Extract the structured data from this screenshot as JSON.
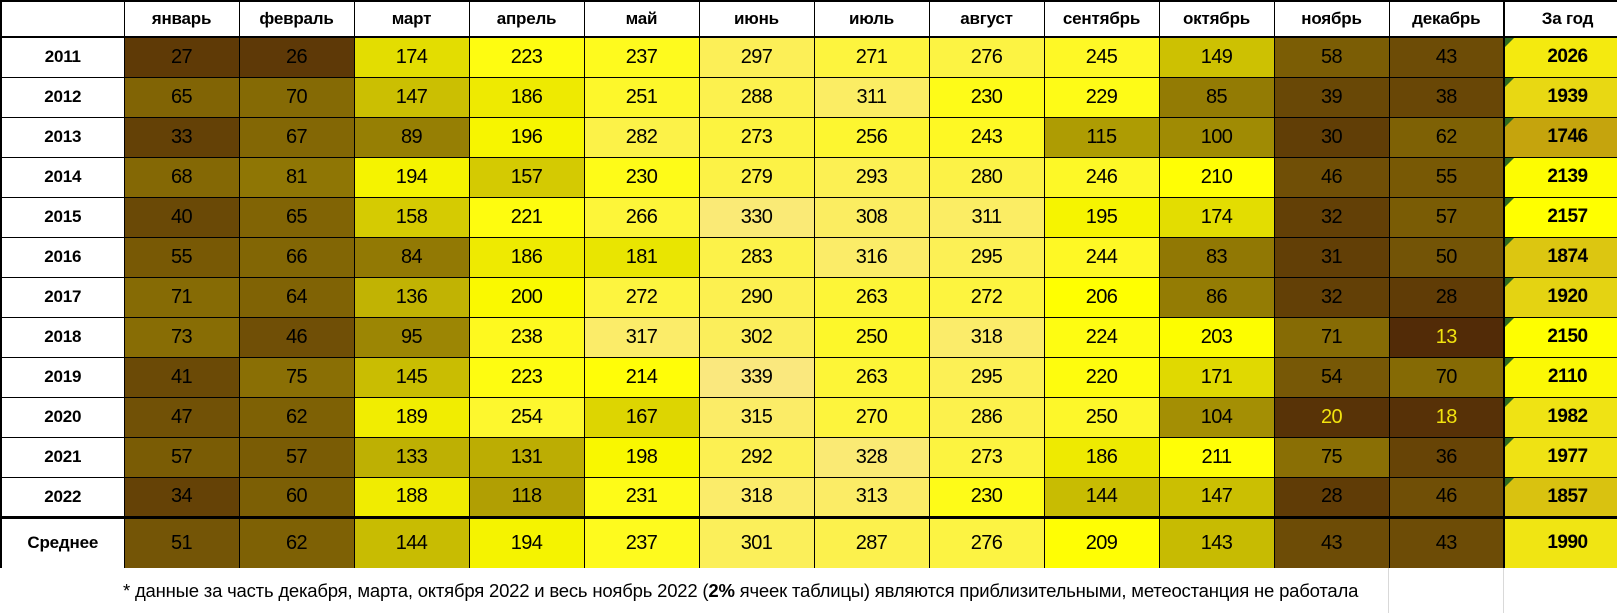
{
  "chart_data": {
    "type": "heatmap",
    "corner_label": "",
    "columns": [
      "январь",
      "февраль",
      "март",
      "апрель",
      "май",
      "июнь",
      "июль",
      "август",
      "сентябрь",
      "октябрь",
      "ноябрь",
      "декабрь"
    ],
    "total_column": "За год",
    "rows": [
      {
        "label": "2011",
        "values": [
          27,
          26,
          174,
          223,
          237,
          297,
          271,
          276,
          245,
          149,
          58,
          43
        ],
        "total": 2026,
        "has_indicator": true,
        "is_summary": false
      },
      {
        "label": "2012",
        "values": [
          65,
          70,
          147,
          186,
          251,
          288,
          311,
          230,
          229,
          85,
          39,
          38
        ],
        "total": 1939,
        "has_indicator": true,
        "is_summary": false
      },
      {
        "label": "2013",
        "values": [
          33,
          67,
          89,
          196,
          282,
          273,
          256,
          243,
          115,
          100,
          30,
          62
        ],
        "total": 1746,
        "has_indicator": true,
        "is_summary": false
      },
      {
        "label": "2014",
        "values": [
          68,
          81,
          194,
          157,
          230,
          279,
          293,
          280,
          246,
          210,
          46,
          55
        ],
        "total": 2139,
        "has_indicator": true,
        "is_summary": false
      },
      {
        "label": "2015",
        "values": [
          40,
          65,
          158,
          221,
          266,
          330,
          308,
          311,
          195,
          174,
          32,
          57
        ],
        "total": 2157,
        "has_indicator": true,
        "is_summary": false
      },
      {
        "label": "2016",
        "values": [
          55,
          66,
          84,
          186,
          181,
          283,
          316,
          295,
          244,
          83,
          31,
          50
        ],
        "total": 1874,
        "has_indicator": true,
        "is_summary": false
      },
      {
        "label": "2017",
        "values": [
          71,
          64,
          136,
          200,
          272,
          290,
          263,
          272,
          206,
          86,
          32,
          28
        ],
        "total": 1920,
        "has_indicator": true,
        "is_summary": false
      },
      {
        "label": "2018",
        "values": [
          73,
          46,
          95,
          238,
          317,
          302,
          250,
          318,
          224,
          203,
          71,
          13
        ],
        "total": 2150,
        "has_indicator": true,
        "is_summary": false
      },
      {
        "label": "2019",
        "values": [
          41,
          75,
          145,
          223,
          214,
          339,
          263,
          295,
          220,
          171,
          54,
          70
        ],
        "total": 2110,
        "has_indicator": true,
        "is_summary": false
      },
      {
        "label": "2020",
        "values": [
          47,
          62,
          189,
          254,
          167,
          315,
          270,
          286,
          250,
          104,
          20,
          18
        ],
        "total": 1982,
        "has_indicator": true,
        "is_summary": false
      },
      {
        "label": "2021",
        "values": [
          57,
          57,
          133,
          131,
          198,
          292,
          328,
          273,
          186,
          211,
          75,
          36
        ],
        "total": 1977,
        "has_indicator": true,
        "is_summary": false
      },
      {
        "label": "2022",
        "values": [
          34,
          60,
          188,
          118,
          231,
          318,
          313,
          230,
          144,
          147,
          28,
          46
        ],
        "total": 1857,
        "has_indicator": true,
        "is_summary": false
      },
      {
        "label": "Среднее",
        "values": [
          51,
          62,
          144,
          194,
          237,
          301,
          287,
          276,
          209,
          143,
          43,
          43
        ],
        "total": 1990,
        "has_indicator": false,
        "is_summary": true
      }
    ],
    "color_scale": {
      "min": {
        "value": 13,
        "color": "#522B07"
      },
      "mid": {
        "value": 205,
        "color": "#FFFF00"
      },
      "max": {
        "value": 339,
        "color": "#FAE87E"
      },
      "light_text_max_value": 21,
      "light_text_color": "#F2E30E"
    },
    "total_color_scale": {
      "min": {
        "value": 1746,
        "color": "#C5A40D"
      },
      "mid": {
        "value": 1985,
        "color": "#F0E414"
      },
      "max": {
        "value": 2157,
        "color": "#FFFF00"
      }
    },
    "indicator_color": "#2F6B1F",
    "grid_off_table_color": "#D9D9D9"
  },
  "footnote": {
    "part1": "* данные за часть декабря, марта, октября 2022 и весь ноябрь 2022 (",
    "bold": "2%",
    "part2": " ячеек таблицы) являются приблизительными, метеостанция не работала"
  }
}
